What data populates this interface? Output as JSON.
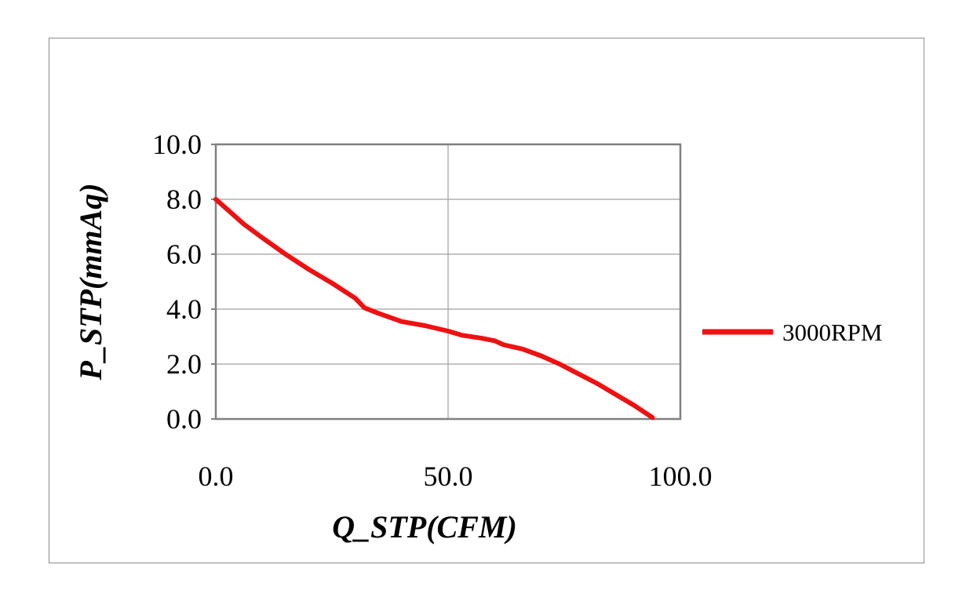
{
  "chart_data": {
    "type": "line",
    "title": "",
    "xlabel": "Q_STP(CFM)",
    "ylabel": "P_STP(mmAq)",
    "xlim": [
      0,
      100
    ],
    "ylim": [
      0,
      10
    ],
    "x_ticks": [
      "0.0",
      "50.0",
      "100.0"
    ],
    "y_ticks": [
      "0.0",
      "2.0",
      "4.0",
      "6.0",
      "8.0",
      "10.0"
    ],
    "x_tick_values": [
      0,
      50,
      100
    ],
    "y_tick_values": [
      0,
      2,
      4,
      6,
      8,
      10
    ],
    "grid": true,
    "legend_position": "right",
    "series": [
      {
        "name": "3000RPM",
        "color": "#ee1111",
        "x": [
          0,
          3,
          6,
          10,
          15,
          20,
          25,
          30,
          32,
          35,
          40,
          45,
          50,
          53,
          57,
          60,
          62,
          66,
          70,
          74,
          78,
          82,
          86,
          90,
          94
        ],
        "y": [
          8.0,
          7.55,
          7.1,
          6.6,
          6.0,
          5.45,
          4.95,
          4.4,
          4.05,
          3.85,
          3.55,
          3.4,
          3.2,
          3.05,
          2.95,
          2.85,
          2.7,
          2.55,
          2.3,
          2.0,
          1.65,
          1.3,
          0.9,
          0.5,
          0.05
        ]
      }
    ]
  }
}
